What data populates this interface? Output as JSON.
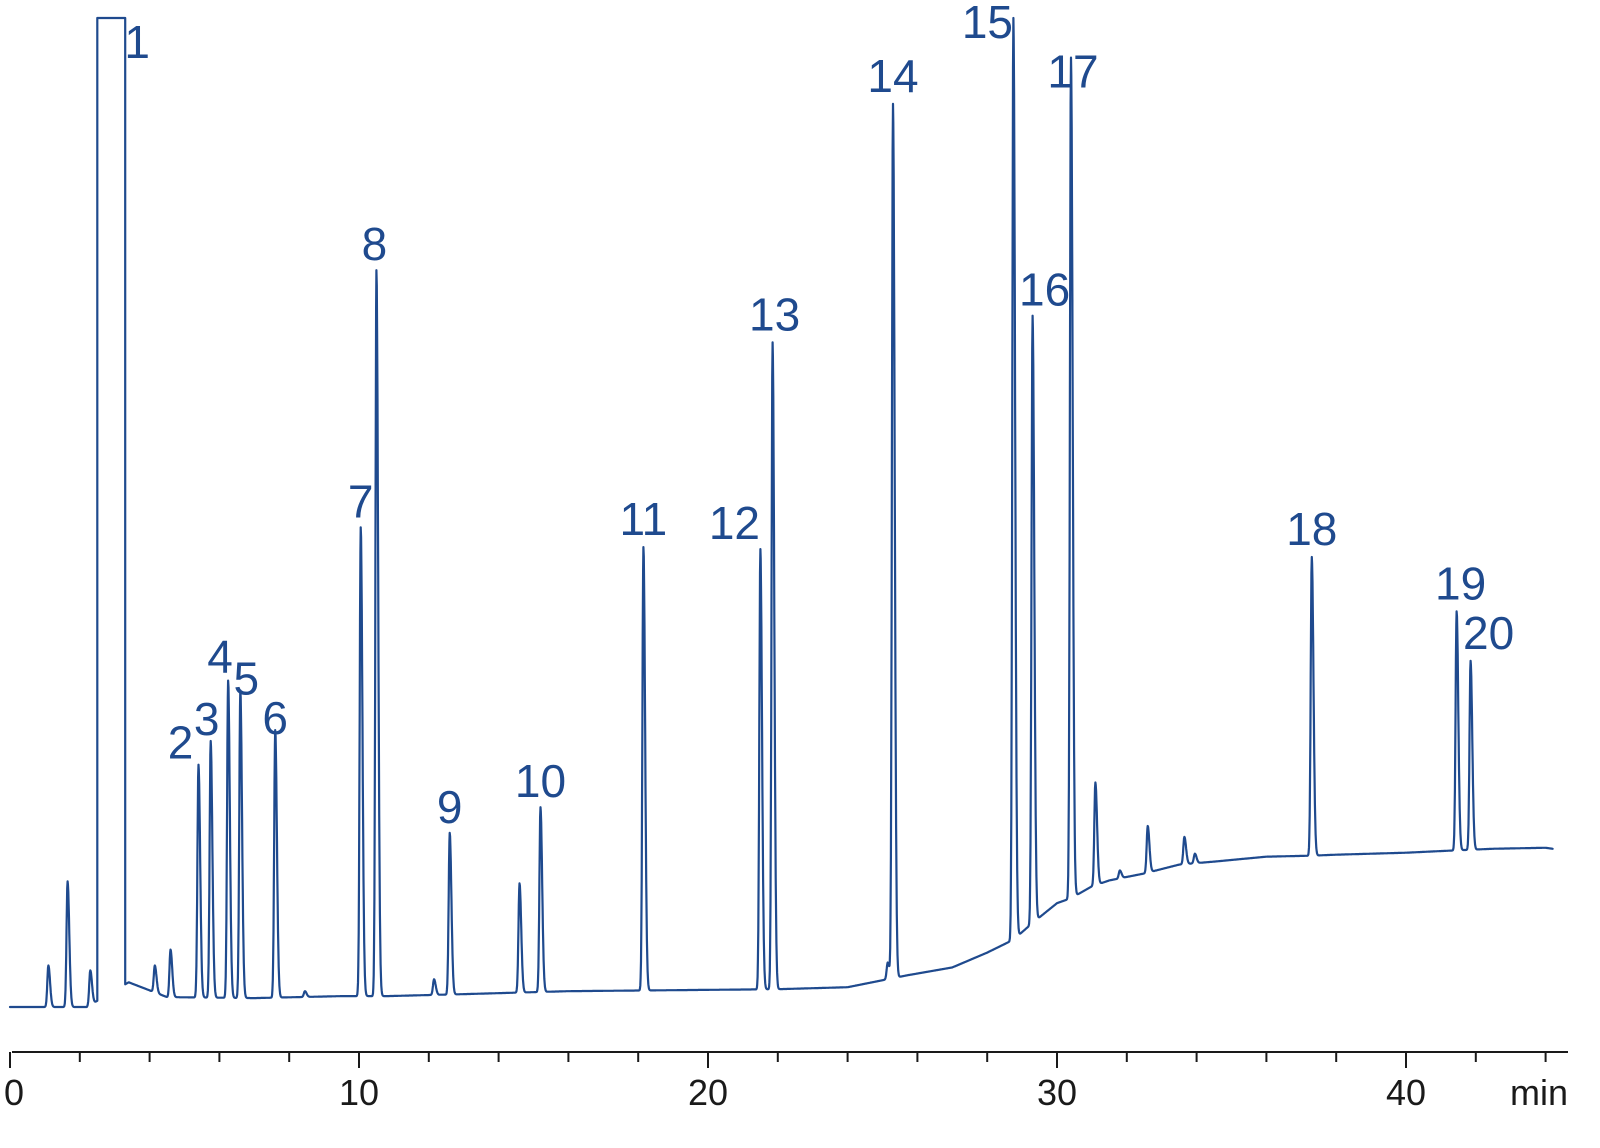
{
  "colors": {
    "trace": "#1f4a8e",
    "axis": "#1a1a1a"
  },
  "chart_data": {
    "type": "line",
    "title": "",
    "xlabel": "",
    "ylabel": "",
    "x_unit": "min",
    "xlim": [
      0,
      44.2
    ],
    "ylim": [
      0,
      100
    ],
    "x_ticks_major": [
      0,
      10,
      20,
      30,
      40
    ],
    "x_tick_labels": [
      "0",
      "10",
      "20",
      "30",
      "40"
    ],
    "x_minor_step": 2,
    "grid": false,
    "legend": "none",
    "baseline": [
      [
        0,
        0
      ],
      [
        1.0,
        0
      ],
      [
        2.2,
        0
      ],
      [
        3.4,
        2.5
      ],
      [
        4.5,
        1.0
      ],
      [
        7.0,
        0.9
      ],
      [
        9.5,
        1.1
      ],
      [
        10.8,
        1.1
      ],
      [
        13,
        1.3
      ],
      [
        16,
        1.6
      ],
      [
        19,
        1.7
      ],
      [
        22,
        1.8
      ],
      [
        24,
        2.0
      ],
      [
        25.7,
        3.2
      ],
      [
        27,
        4.0
      ],
      [
        28,
        5.5
      ],
      [
        28.75,
        6.8
      ],
      [
        29.3,
        8.5
      ],
      [
        30.0,
        10.5
      ],
      [
        30.4,
        11.0
      ],
      [
        31.0,
        12.2
      ],
      [
        31.5,
        12.8
      ],
      [
        32.5,
        13.5
      ],
      [
        33.5,
        14.4
      ],
      [
        34.5,
        14.7
      ],
      [
        36,
        15.2
      ],
      [
        37.3,
        15.3
      ],
      [
        38,
        15.4
      ],
      [
        40,
        15.6
      ],
      [
        41.2,
        15.8
      ],
      [
        42.5,
        16
      ],
      [
        44,
        16.1
      ],
      [
        44.2,
        16
      ]
    ],
    "solvent_peak": {
      "label": "1",
      "x_start": 2.5,
      "x_end": 3.3,
      "clipped": true
    },
    "peaks": [
      {
        "label": "2",
        "x": 5.4,
        "y": 24.5
      },
      {
        "label": "3",
        "x": 5.75,
        "y": 26.9
      },
      {
        "label": "4",
        "x": 6.25,
        "y": 33.0
      },
      {
        "label": "5",
        "x": 6.6,
        "y": 32.0
      },
      {
        "label": "6",
        "x": 7.6,
        "y": 28.0
      },
      {
        "label": "7",
        "x": 10.05,
        "y": 48.5
      },
      {
        "label": "8",
        "x": 10.5,
        "y": 74.5
      },
      {
        "label": "9",
        "x": 12.6,
        "y": 17.6
      },
      {
        "label": "10",
        "x": 15.2,
        "y": 20.2
      },
      {
        "label": "11",
        "x": 18.15,
        "y": 46.5
      },
      {
        "label": "12",
        "x": 21.5,
        "y": 46.3
      },
      {
        "label": "13",
        "x": 21.85,
        "y": 67.2
      },
      {
        "label": "14",
        "x": 25.3,
        "y": 91.3
      },
      {
        "label": "15",
        "x": 28.75,
        "y": 100.0
      },
      {
        "label": "16",
        "x": 29.3,
        "y": 69.9
      },
      {
        "label": "17",
        "x": 30.4,
        "y": 96.0
      },
      {
        "label": "18",
        "x": 37.3,
        "y": 45.5
      },
      {
        "label": "19",
        "x": 41.45,
        "y": 40.0
      },
      {
        "label": "20",
        "x": 41.85,
        "y": 35.0
      }
    ],
    "minor_peaks": [
      {
        "x": 1.1,
        "y": 4.2
      },
      {
        "x": 1.65,
        "y": 12.7
      },
      {
        "x": 2.3,
        "y": 3.7
      },
      {
        "x": 4.15,
        "y": 4.2
      },
      {
        "x": 4.6,
        "y": 5.8
      },
      {
        "x": 8.45,
        "y": 1.6
      },
      {
        "x": 12.15,
        "y": 2.8
      },
      {
        "x": 14.6,
        "y": 12.5
      },
      {
        "x": 25.15,
        "y": 4.5
      },
      {
        "x": 31.1,
        "y": 22.7
      },
      {
        "x": 31.8,
        "y": 13.8
      },
      {
        "x": 32.6,
        "y": 18.3
      },
      {
        "x": 33.65,
        "y": 17.2
      },
      {
        "x": 33.95,
        "y": 15.5
      }
    ]
  }
}
